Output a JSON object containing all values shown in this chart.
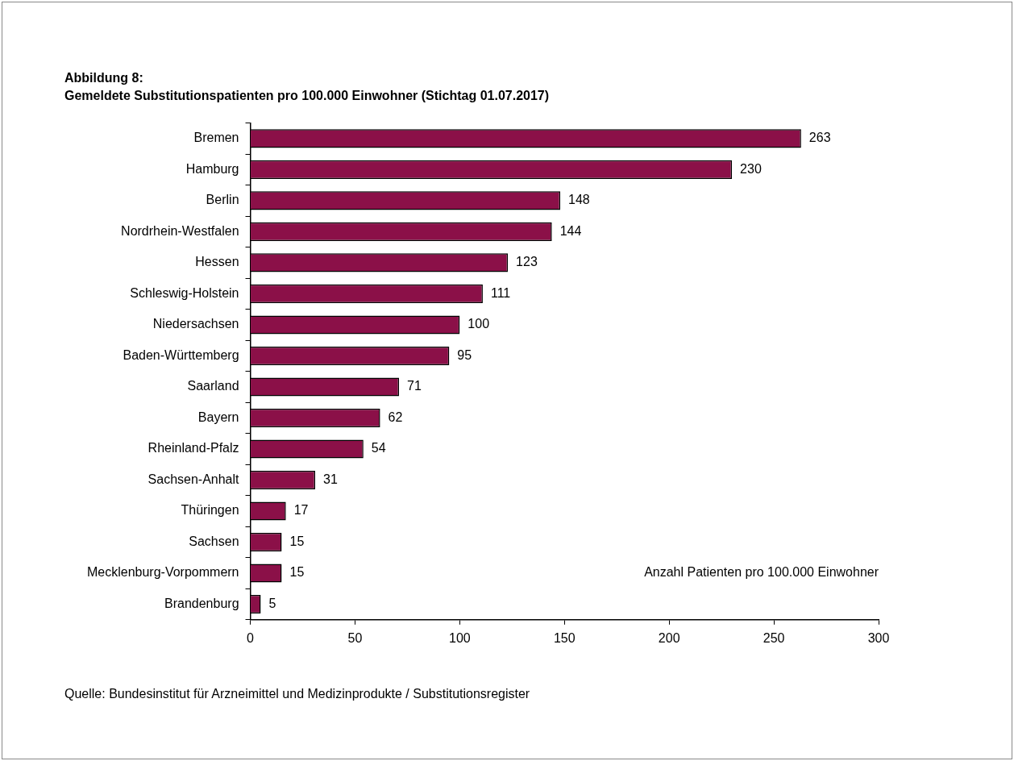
{
  "chart_data": {
    "type": "bar",
    "orientation": "horizontal",
    "title": "Abbildung 8:",
    "subtitle": "Gemeldete Substitutionspatienten pro 100.000 Einwohner (Stichtag 01.07.2017)",
    "xlabel": "Anzahl Patienten pro 100.000 Einwohner",
    "categories": [
      "Bremen",
      "Hamburg",
      "Berlin",
      "Nordrhein-Westfalen",
      "Hessen",
      "Schleswig-Holstein",
      "Niedersachsen",
      "Baden-Württemberg",
      "Saarland",
      "Bayern",
      "Rheinland-Pfalz",
      "Sachsen-Anhalt",
      "Thüringen",
      "Sachsen",
      "Mecklenburg-Vorpommern",
      "Brandenburg"
    ],
    "values": [
      263,
      230,
      148,
      144,
      123,
      111,
      100,
      95,
      71,
      62,
      54,
      31,
      17,
      15,
      15,
      5
    ],
    "color": "#8b1048",
    "xlim": [
      0,
      300
    ],
    "xticks": [
      0,
      50,
      100,
      150,
      200,
      250,
      300
    ],
    "data_labels": true,
    "grid": false,
    "legend": false,
    "annotations": [
      "Quelle: Bundesinstitut für Arzneimittel und Medizinprodukte / Substitutionsregister"
    ]
  }
}
